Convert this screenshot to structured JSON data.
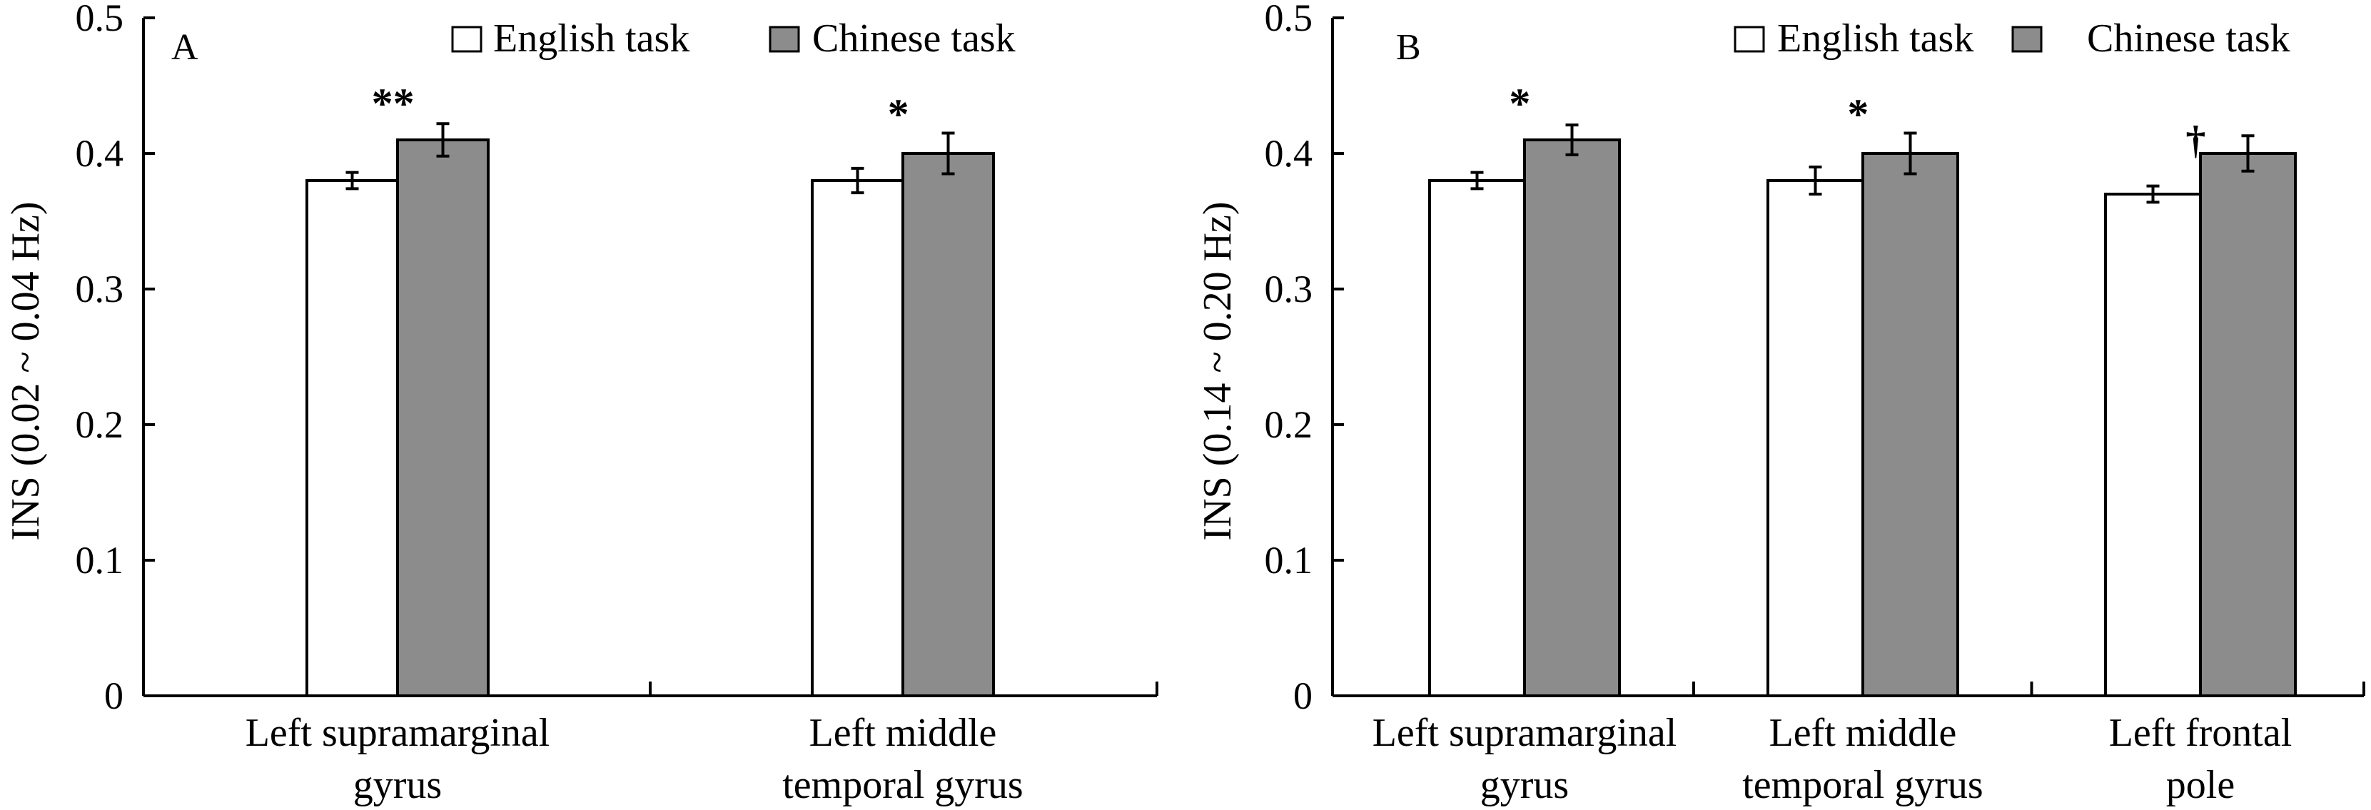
{
  "chart_data": [
    {
      "type": "bar",
      "panel_label": "A",
      "ylabel": "INS (0.02 ~ 0.04 Hz)",
      "ylim": [
        0,
        0.5
      ],
      "yticks": [
        "0",
        "0.1",
        "0.2",
        "0.3",
        "0.4",
        "0.5"
      ],
      "categories": [
        [
          "Left supramarginal",
          "gyrus"
        ],
        [
          "Left middle",
          "temporal gyrus"
        ]
      ],
      "legend": [
        "English task",
        "Chinese task"
      ],
      "legend_position": "top-right",
      "series": [
        {
          "name": "English task",
          "color": "#ffffff",
          "values": [
            0.38,
            0.38
          ],
          "errors": [
            0.006,
            0.009
          ]
        },
        {
          "name": "Chinese task",
          "color": "#8c8c8c",
          "values": [
            0.41,
            0.4
          ],
          "errors": [
            0.012,
            0.015
          ]
        }
      ],
      "annotations": [
        "**",
        "*"
      ]
    },
    {
      "type": "bar",
      "panel_label": "B",
      "ylabel": "INS (0.14 ~ 0.20 Hz)",
      "ylim": [
        0,
        0.5
      ],
      "yticks": [
        "0",
        "0.1",
        "0.2",
        "0.3",
        "0.4",
        "0.5"
      ],
      "categories": [
        [
          "Left supramarginal",
          "gyrus"
        ],
        [
          "Left middle",
          "temporal gyrus"
        ],
        [
          "Left frontal",
          "pole"
        ]
      ],
      "legend": [
        "English task",
        "Chinese task"
      ],
      "legend_position": "top-right",
      "series": [
        {
          "name": "English task",
          "color": "#ffffff",
          "values": [
            0.38,
            0.38,
            0.37
          ],
          "errors": [
            0.006,
            0.01,
            0.006
          ]
        },
        {
          "name": "Chinese task",
          "color": "#8c8c8c",
          "values": [
            0.41,
            0.4,
            0.4
          ],
          "errors": [
            0.011,
            0.015,
            0.013
          ]
        }
      ],
      "annotations": [
        "*",
        "*",
        "†"
      ]
    }
  ]
}
